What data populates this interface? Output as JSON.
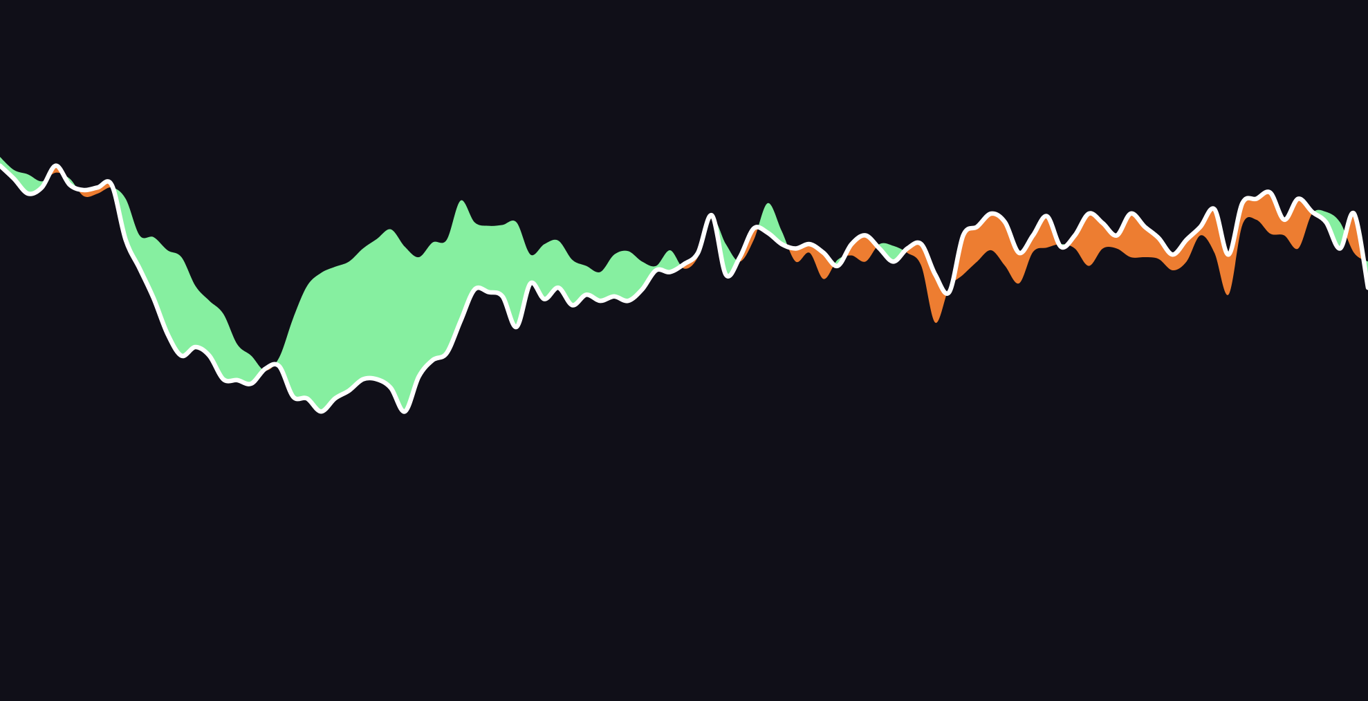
{
  "chart_data": {
    "type": "difference",
    "background": "#100f18",
    "fill_above": "#86efa0",
    "fill_below": "#ed7d31",
    "xlim": [
      0,
      1568
    ],
    "ylim": [
      0,
      804
    ],
    "x": [
      0,
      16,
      32,
      48,
      64,
      80,
      96,
      112,
      128,
      144,
      160,
      176,
      192,
      208,
      224,
      240,
      256,
      272,
      288,
      304,
      320,
      336,
      352,
      368,
      384,
      400,
      416,
      432,
      448,
      464,
      480,
      496,
      512,
      528,
      544,
      560,
      576,
      592,
      608,
      624,
      640,
      656,
      672,
      688,
      704,
      720,
      736,
      752,
      768,
      784,
      800,
      816,
      832,
      848,
      864,
      880,
      896,
      912,
      928,
      944,
      960,
      976,
      992,
      1008,
      1024,
      1040,
      1056,
      1072,
      1088,
      1104,
      1120,
      1136,
      1152,
      1168,
      1184,
      1200,
      1216,
      1232,
      1248,
      1264,
      1280,
      1296,
      1312,
      1328,
      1344,
      1360,
      1376,
      1392,
      1408,
      1424,
      1440,
      1456,
      1472,
      1488,
      1504,
      1520,
      1536,
      1552,
      1568
    ],
    "series": [
      {
        "color": "#ffffff",
        "values": [
          614,
          599,
          582,
          589,
          614,
          592,
          586,
          589,
          592,
          529,
          496,
          462,
          421,
          396,
          406,
          396,
          369,
          368,
          364,
          381,
          384,
          349,
          347,
          332,
          347,
          356,
          369,
          369,
          359,
          332,
          372,
          391,
          399,
          436,
          472,
          469,
          464,
          429,
          479,
          461,
          474,
          454,
          466,
          459,
          464,
          459,
          472,
          494,
          492,
          501,
          514,
          557,
          489,
          509,
          542,
          537,
          524,
          519,
          524,
          514,
          499,
          524,
          534,
          519,
          504,
          519,
          524,
          489,
          469,
          534,
          544,
          559,
          549,
          514,
          534,
          556,
          521,
          534,
          559,
          548,
          534,
          559,
          544,
          531,
          512,
          529,
          544,
          564,
          512,
          571,
          576,
          583,
          552,
          576,
          561,
          549,
          519,
          559,
          474
        ]
      },
      {
        "color": "none",
        "values": [
          624,
          609,
          604,
          596,
          606,
          599,
          579,
          582,
          589,
          576,
          534,
          532,
          517,
          509,
          476,
          459,
          444,
          409,
          396,
          379,
          394,
          439,
          476,
          491,
          498,
          504,
          519,
          530,
          541,
          521,
          509,
          526,
          529,
          574,
          549,
          545,
          546,
          549,
          512,
          524,
          528,
          506,
          499,
          492,
          512,
          516,
          504,
          499,
          517,
          496,
          509,
          554,
          524,
          504,
          529,
          571,
          539,
          504,
          514,
          484,
          506,
          511,
          504,
          524,
          522,
          514,
          499,
          434,
          474,
          489,
          504,
          517,
          499,
          479,
          515,
          520,
          524,
          519,
          499,
          519,
          519,
          509,
          509,
          507,
          494,
          504,
          534,
          514,
          466,
          546,
          552,
          536,
          534,
          519,
          559,
          561,
          549,
          514,
          504
        ]
      }
    ]
  }
}
